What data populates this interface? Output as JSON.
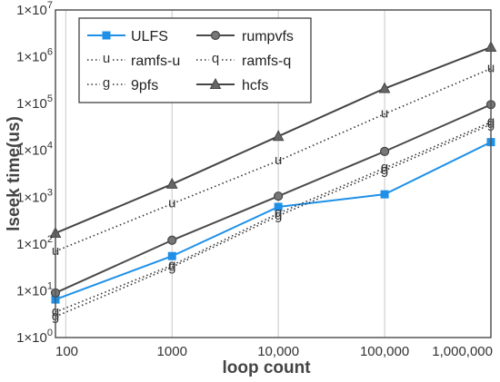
{
  "chart_data": {
    "type": "line",
    "xlabel": "loop count",
    "ylabel": "lseek time(us)",
    "xscale": "log",
    "yscale": "log",
    "xlim": [
      80,
      1000000
    ],
    "ylim": [
      1,
      10000000
    ],
    "x_ticks": [
      {
        "value": 100,
        "label": "100"
      },
      {
        "value": 1000,
        "label": "1000"
      },
      {
        "value": 10000,
        "label": "10,000"
      },
      {
        "value": 100000,
        "label": "100,000"
      },
      {
        "value": 1000000,
        "label": "1,000,000"
      }
    ],
    "y_ticks": [
      {
        "value": 1,
        "base": "1×10",
        "exp": "0"
      },
      {
        "value": 10,
        "base": "1×10",
        "exp": "1"
      },
      {
        "value": 100,
        "base": "1×10",
        "exp": "2"
      },
      {
        "value": 1000,
        "base": "1×10",
        "exp": "3"
      },
      {
        "value": 10000,
        "base": "1×10",
        "exp": "4"
      },
      {
        "value": 100000,
        "base": "1×10",
        "exp": "5"
      },
      {
        "value": 1000000,
        "base": "1×10",
        "exp": "6"
      },
      {
        "value": 10000000,
        "base": "1×10",
        "exp": "7"
      }
    ],
    "grid": "vertical-major",
    "legend_position": "top-left",
    "x": [
      80,
      1000,
      10000,
      100000,
      1000000
    ],
    "series": [
      {
        "name": "ULFS",
        "color": "#1E90E8",
        "line": "solid",
        "marker": "square",
        "values": [
          6.5,
          55,
          620,
          1150,
          15000
        ]
      },
      {
        "name": "rumpvfs",
        "color": "#4A4A4A",
        "line": "solid",
        "marker": "circle",
        "values": [
          9,
          120,
          1050,
          9500,
          95000
        ]
      },
      {
        "name": "ramfs-u",
        "color": "#333333",
        "line": "dotted",
        "marker": "u",
        "values": [
          70,
          720,
          6000,
          60000,
          560000
        ]
      },
      {
        "name": "ramfs-q",
        "color": "#333333",
        "line": "dotted",
        "marker": "q",
        "values": [
          3.5,
          35,
          450,
          4200,
          40000
        ]
      },
      {
        "name": "9pfs",
        "color": "#333333",
        "line": "dotted",
        "marker": "g",
        "values": [
          2.8,
          32,
          400,
          3700,
          36000
        ]
      },
      {
        "name": "hcfs",
        "color": "#444444",
        "line": "solid",
        "marker": "triangle",
        "values": [
          170,
          1900,
          20000,
          210000,
          1600000
        ]
      }
    ]
  }
}
